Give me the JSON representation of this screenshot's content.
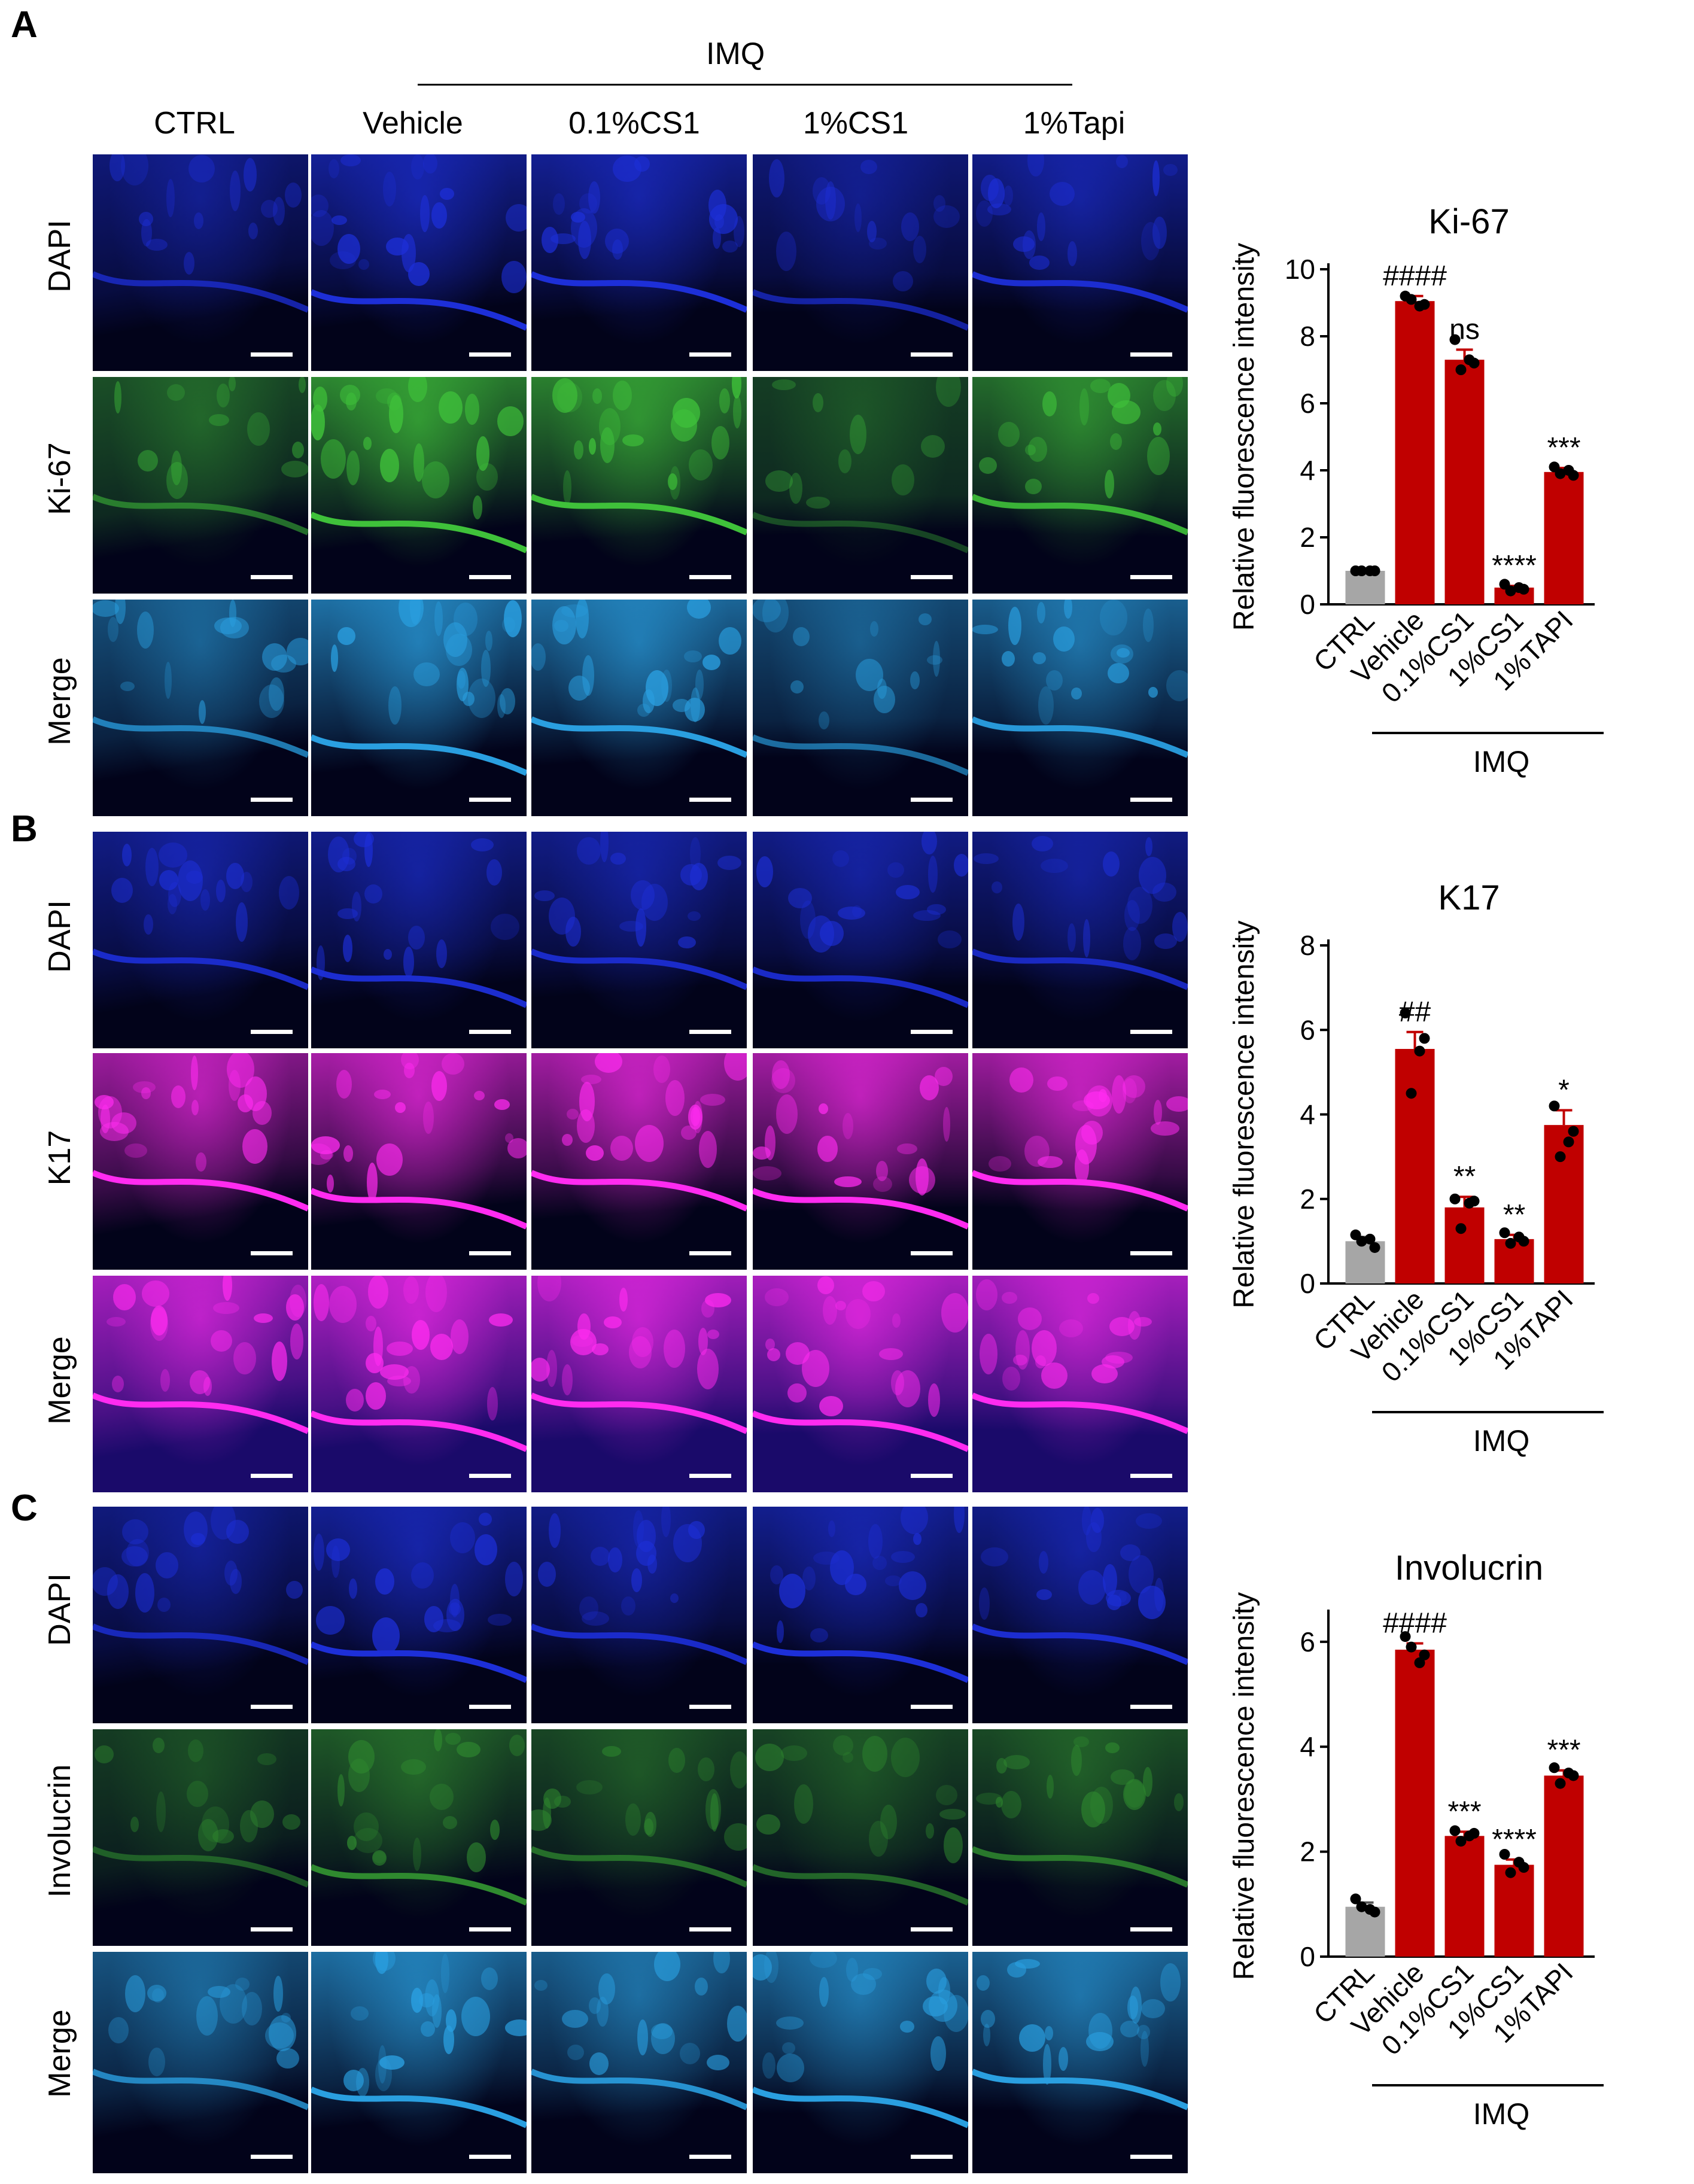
{
  "panels": {
    "A": "A",
    "B": "B",
    "C": "C"
  },
  "header": {
    "imq": "IMQ",
    "columns": [
      "CTRL",
      "Vehicle",
      "0.1%CS1",
      "1%CS1",
      "1%Tapi"
    ]
  },
  "rows": {
    "A": [
      "DAPI",
      "Ki-67",
      "Merge"
    ],
    "B": [
      "DAPI",
      "K17",
      "Merge"
    ],
    "C": [
      "DAPI",
      "Involucrin",
      "Merge"
    ]
  },
  "colors": {
    "dapi": "#1d2fd8",
    "ki67": "#3fc13a",
    "k17": "#ff2bf0",
    "involucrin": "#2f8a2f",
    "merge_blue": "#2a9fe0",
    "bar_red": "#c00000",
    "bar_gray": "#a6a6a6"
  },
  "chart_data": [
    {
      "type": "bar",
      "title": "Ki-67",
      "ylabel": "Relative fluorescence intensity",
      "categories": [
        "CTRL",
        "Vehicle",
        "0.1%CS1",
        "1%CS1",
        "1%TAPI"
      ],
      "group_label": "IMQ",
      "values": [
        1.0,
        9.05,
        7.3,
        0.5,
        3.95
      ],
      "errors": [
        0.02,
        0.15,
        0.3,
        0.05,
        0.12
      ],
      "points": [
        [
          1.0,
          1.0,
          1.0,
          1.0
        ],
        [
          9.2,
          8.95,
          9.1,
          8.9
        ],
        [
          7.9,
          7.2,
          7.0,
          7.3
        ],
        [
          0.6,
          0.45,
          0.4,
          0.5
        ],
        [
          4.1,
          3.85,
          3.9,
          4.0
        ]
      ],
      "annotations": [
        "",
        "####",
        "ns",
        "****",
        "***"
      ],
      "ylim": [
        0,
        10
      ],
      "yticks": [
        "0",
        "2",
        "4",
        "6",
        "8",
        "10"
      ]
    },
    {
      "type": "bar",
      "title": "K17",
      "ylabel": "Relative fluorescence intensity",
      "categories": [
        "CTRL",
        "Vehicle",
        "0.1%CS1",
        "1%CS1",
        "1%TAPI"
      ],
      "group_label": "IMQ",
      "values": [
        1.0,
        5.55,
        1.8,
        1.05,
        3.75
      ],
      "errors": [
        0.1,
        0.4,
        0.25,
        0.1,
        0.35
      ],
      "points": [
        [
          1.15,
          0.85,
          1.0,
          1.05
        ],
        [
          6.4,
          5.8,
          4.5,
          5.5
        ],
        [
          2.0,
          1.95,
          1.3,
          1.9
        ],
        [
          1.2,
          1.0,
          0.95,
          1.1
        ],
        [
          4.2,
          3.6,
          3.0,
          3.35
        ]
      ],
      "annotations": [
        "",
        "##",
        "**",
        "**",
        "*"
      ],
      "ylim": [
        0,
        8
      ],
      "yticks": [
        "0",
        "2",
        "4",
        "6",
        "8"
      ]
    },
    {
      "type": "bar",
      "title": "Involucrin",
      "ylabel": "Relative fluorescence intensity",
      "categories": [
        "CTRL",
        "Vehicle",
        "0.1%CS1",
        "1%CS1",
        "1%TAPI"
      ],
      "group_label": "IMQ",
      "values": [
        0.95,
        5.85,
        2.3,
        1.75,
        3.45
      ],
      "errors": [
        0.08,
        0.12,
        0.08,
        0.1,
        0.1
      ],
      "points": [
        [
          1.1,
          0.85,
          0.95,
          0.9
        ],
        [
          6.1,
          5.75,
          5.9,
          5.6
        ],
        [
          2.4,
          2.35,
          2.2,
          2.3
        ],
        [
          1.95,
          1.7,
          1.6,
          1.8
        ],
        [
          3.6,
          3.45,
          3.3,
          3.5
        ]
      ],
      "annotations": [
        "",
        "####",
        "***",
        "****",
        "***"
      ],
      "ylim": [
        0,
        6.5
      ],
      "yticks": [
        "0",
        "2",
        "4",
        "6"
      ]
    }
  ]
}
